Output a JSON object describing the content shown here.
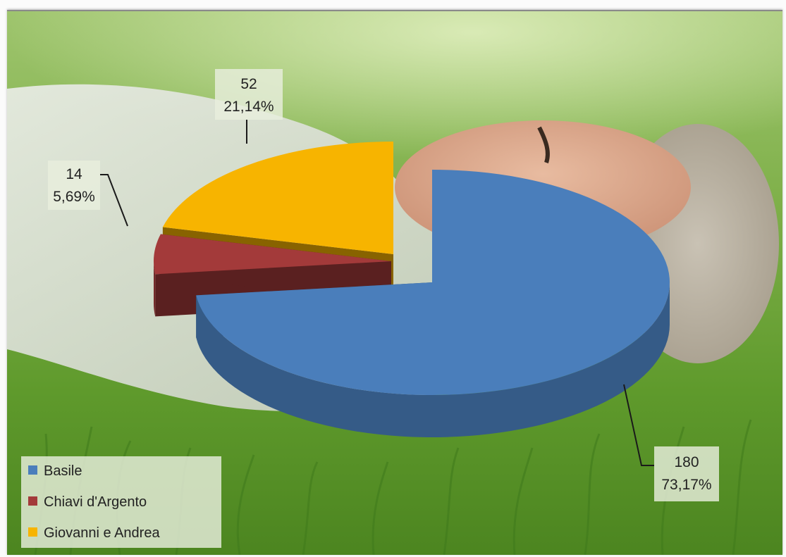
{
  "chart_data": {
    "type": "pie",
    "title": "",
    "slices": [
      {
        "label": "Basile",
        "value": 180,
        "percent": "73,17%",
        "color": "#4a7ebb"
      },
      {
        "label": "Chiavi d'Argento",
        "value": 14,
        "percent": "5,69%",
        "color": "#a33a3a"
      },
      {
        "label": "Giovanni e Andrea",
        "value": 52,
        "percent": "21,14%",
        "color": "#f7b400"
      }
    ],
    "legend": {
      "placement": "bottom-left",
      "entries": [
        "Basile",
        "Chiavi d'Argento",
        "Giovanni e Andrea"
      ]
    },
    "style": "3d-exploded",
    "background": "photo-woman-lying-in-grass"
  }
}
